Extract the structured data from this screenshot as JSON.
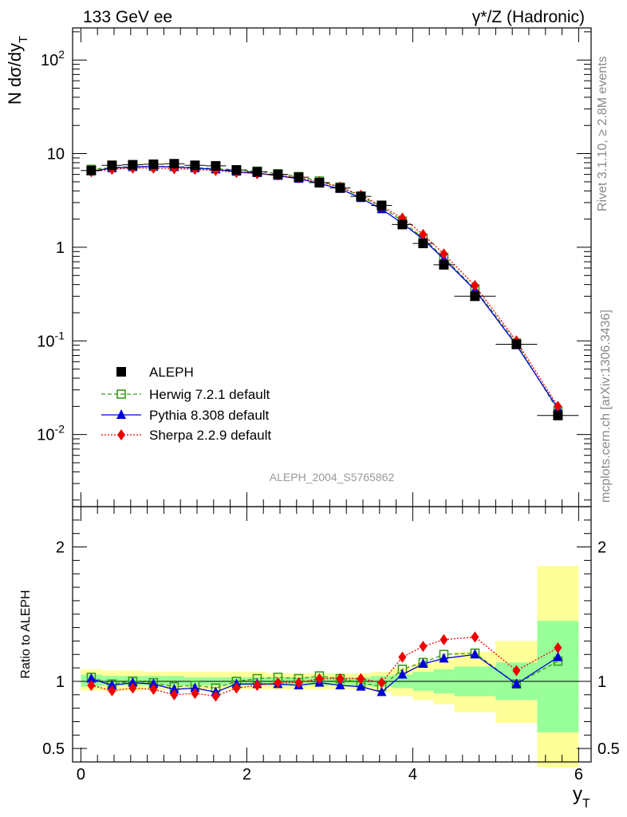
{
  "header": {
    "left": "133 GeV ee",
    "right": "γ*/Z (Hadronic)"
  },
  "side_texts": {
    "rivet": "Rivet 3.1.10, ≥ 2.8M events",
    "mcplots": "mcplots.cern.ch [arXiv:1306.3436]"
  },
  "analysis_id": "ALEPH_2004_S5765862",
  "colors": {
    "aleph": "#000000",
    "herwig": "#3a9a1a",
    "pythia": "#0000dd",
    "sherpa": "#ee0000",
    "band_inner": "#99ff99",
    "band_outer": "#ffff99"
  },
  "chart_data": [
    {
      "type": "scatter",
      "panel": "main",
      "ylabel": "N dσ/dy_T",
      "yscale": "log",
      "ylim": [
        0.0017,
        220
      ],
      "xlim": [
        -0.1,
        6.15
      ],
      "ytick_labels": [
        "10^-2",
        "10^-1",
        "1",
        "10",
        "10^2"
      ],
      "x": [
        0.125,
        0.375,
        0.625,
        0.875,
        1.125,
        1.375,
        1.625,
        1.875,
        2.125,
        2.375,
        2.625,
        2.875,
        3.125,
        3.375,
        3.625,
        3.875,
        4.125,
        4.375,
        4.75,
        5.25,
        5.75
      ],
      "series": [
        {
          "name": "ALEPH",
          "key": "aleph",
          "marker": "square",
          "values": [
            6.6,
            7.5,
            7.6,
            7.7,
            7.8,
            7.5,
            7.4,
            6.7,
            6.4,
            6.0,
            5.6,
            4.9,
            4.3,
            3.5,
            2.8,
            1.75,
            1.1,
            0.65,
            0.3,
            0.092,
            0.016
          ],
          "x_half_widths": [
            0.125,
            0.125,
            0.125,
            0.125,
            0.125,
            0.125,
            0.125,
            0.125,
            0.125,
            0.125,
            0.125,
            0.125,
            0.125,
            0.125,
            0.125,
            0.125,
            0.125,
            0.125,
            0.25,
            0.25,
            0.25
          ]
        },
        {
          "name": "Herwig 7.2.1 default",
          "key": "herwig",
          "marker": "open-square",
          "line": "dashed",
          "values": [
            6.8,
            7.1,
            7.3,
            7.3,
            7.3,
            7.1,
            6.9,
            6.7,
            6.5,
            6.1,
            5.7,
            5.1,
            4.4,
            3.5,
            2.7,
            1.9,
            1.25,
            0.78,
            0.36,
            0.095,
            0.018
          ]
        },
        {
          "name": "Pythia 8.308 default",
          "key": "pythia",
          "marker": "triangle",
          "line": "solid",
          "values": [
            6.5,
            7.0,
            7.2,
            7.3,
            7.2,
            7.0,
            6.8,
            6.4,
            6.2,
            5.8,
            5.4,
            4.8,
            4.2,
            3.35,
            2.55,
            1.8,
            1.22,
            0.75,
            0.35,
            0.09,
            0.019
          ]
        },
        {
          "name": "Sherpa 2.2.9 default",
          "key": "sherpa",
          "marker": "diamond",
          "line": "dotted",
          "values": [
            6.4,
            6.8,
            7.0,
            7.0,
            6.9,
            6.8,
            6.6,
            6.3,
            6.1,
            5.9,
            5.5,
            5.0,
            4.4,
            3.6,
            2.75,
            2.05,
            1.37,
            0.85,
            0.39,
            0.1,
            0.02
          ]
        }
      ]
    },
    {
      "type": "scatter",
      "panel": "ratio",
      "xlabel": "y_T",
      "ylabel": "Ratio to ALEPH",
      "ylim": [
        0.4,
        2.3
      ],
      "xlim": [
        -0.1,
        6.15
      ],
      "xtick_labels": [
        "0",
        "2",
        "4",
        "6"
      ],
      "ytick_labels": [
        "0.5",
        "1",
        "2"
      ],
      "x": [
        0.125,
        0.375,
        0.625,
        0.875,
        1.125,
        1.375,
        1.625,
        1.875,
        2.125,
        2.375,
        2.625,
        2.875,
        3.125,
        3.375,
        3.625,
        3.875,
        4.125,
        4.375,
        4.75,
        5.25,
        5.75
      ],
      "bin_edges": [
        0.0,
        0.25,
        0.5,
        0.75,
        1.0,
        1.25,
        1.5,
        1.75,
        2.0,
        2.25,
        2.5,
        2.75,
        3.0,
        3.25,
        3.5,
        3.75,
        4.0,
        4.25,
        4.5,
        5.0,
        5.5,
        6.0
      ],
      "band_inner": [
        [
          0.96,
          1.05
        ],
        [
          0.97,
          1.04
        ],
        [
          0.97,
          1.04
        ],
        [
          0.97,
          1.04
        ],
        [
          0.97,
          1.04
        ],
        [
          0.97,
          1.03
        ],
        [
          0.97,
          1.03
        ],
        [
          0.97,
          1.03
        ],
        [
          0.97,
          1.03
        ],
        [
          0.97,
          1.03
        ],
        [
          0.97,
          1.03
        ],
        [
          0.97,
          1.03
        ],
        [
          0.97,
          1.03
        ],
        [
          0.97,
          1.03
        ],
        [
          0.96,
          1.04
        ],
        [
          0.95,
          1.05
        ],
        [
          0.93,
          1.07
        ],
        [
          0.91,
          1.09
        ],
        [
          0.89,
          1.11
        ],
        [
          0.86,
          1.14
        ],
        [
          0.62,
          1.45
        ]
      ],
      "band_outer": [
        [
          0.93,
          1.09
        ],
        [
          0.93,
          1.08
        ],
        [
          0.93,
          1.08
        ],
        [
          0.94,
          1.07
        ],
        [
          0.94,
          1.07
        ],
        [
          0.94,
          1.07
        ],
        [
          0.94,
          1.07
        ],
        [
          0.94,
          1.07
        ],
        [
          0.94,
          1.07
        ],
        [
          0.94,
          1.06
        ],
        [
          0.94,
          1.06
        ],
        [
          0.94,
          1.06
        ],
        [
          0.94,
          1.06
        ],
        [
          0.94,
          1.06
        ],
        [
          0.92,
          1.07
        ],
        [
          0.89,
          1.1
        ],
        [
          0.86,
          1.13
        ],
        [
          0.83,
          1.16
        ],
        [
          0.77,
          1.22
        ],
        [
          0.69,
          1.3
        ],
        [
          0.36,
          1.86
        ]
      ],
      "series": [
        {
          "name": "Herwig 7.2.1 default",
          "key": "herwig",
          "marker": "open-square",
          "line": "dashed",
          "values": [
            1.03,
            0.98,
            1.0,
            0.99,
            0.96,
            0.97,
            0.95,
            1.0,
            1.02,
            1.03,
            1.02,
            1.04,
            1.02,
            0.99,
            0.96,
            1.09,
            1.14,
            1.2,
            1.21,
            0.98,
            1.15
          ]
        },
        {
          "name": "Pythia 8.308 default",
          "key": "pythia",
          "marker": "triangle",
          "line": "solid",
          "values": [
            1.02,
            0.97,
            0.99,
            0.98,
            0.94,
            0.95,
            0.92,
            0.98,
            0.98,
            0.98,
            0.97,
            0.99,
            0.97,
            0.96,
            0.92,
            1.05,
            1.13,
            1.17,
            1.2,
            0.98,
            1.18
          ]
        },
        {
          "name": "Sherpa 2.2.9 default",
          "key": "sherpa",
          "marker": "diamond",
          "line": "dotted",
          "values": [
            0.97,
            0.93,
            0.95,
            0.94,
            0.9,
            0.91,
            0.89,
            0.95,
            0.97,
            0.99,
            0.99,
            1.02,
            1.02,
            1.02,
            0.99,
            1.18,
            1.26,
            1.31,
            1.33,
            1.08,
            1.25
          ]
        }
      ]
    }
  ]
}
